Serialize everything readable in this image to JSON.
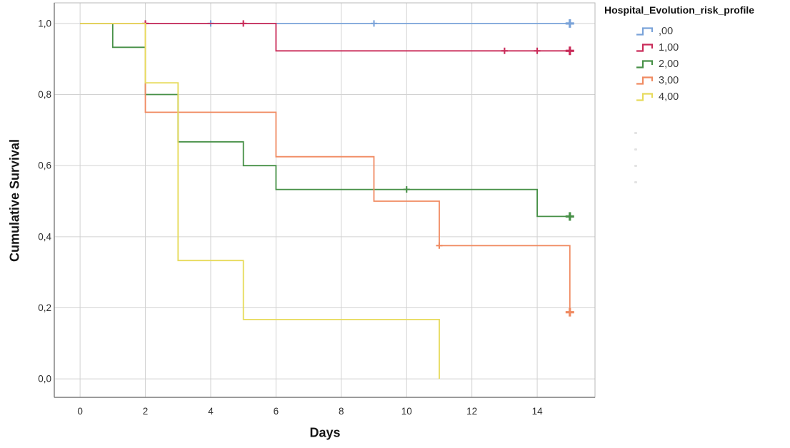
{
  "figure": {
    "background": "#ffffff"
  },
  "axes": {
    "y_title": "Cumulative Survival",
    "x_title": "Days"
  },
  "legend": {
    "title": "Hospital_Evolution_risk_profile",
    "entries": [
      {
        "label": ",00",
        "color": "#7AA3D9"
      },
      {
        "label": "1,00",
        "color": "#C92B59"
      },
      {
        "label": "2,00",
        "color": "#479047"
      },
      {
        "label": "3,00",
        "color": "#F08B62"
      },
      {
        "label": "4,00",
        "color": "#E7DB5C"
      }
    ],
    "ghost_marks": [
      [
        888,
        185
      ],
      [
        888,
        208
      ],
      [
        888,
        231
      ],
      [
        888,
        254
      ]
    ]
  },
  "chart_data": {
    "type": "line",
    "subtype": "kaplan-meier-step-survival",
    "title": "",
    "xlabel": "Days",
    "ylabel": "Cumulative Survival",
    "xlim": [
      -0.79,
      15.77
    ],
    "ylim": [
      -0.052,
      1.058
    ],
    "grid": true,
    "legend_position": "outside-top-right",
    "grid_color": "#d2d2d2",
    "frame_color": "#b8b8b8",
    "axis_color": "#7a7a7a",
    "tick_color": "#2d2d2d",
    "censor_marker": "plus",
    "xticks": [
      {
        "v": 0,
        "label": "0"
      },
      {
        "v": 2,
        "label": "2"
      },
      {
        "v": 4,
        "label": "4"
      },
      {
        "v": 6,
        "label": "6"
      },
      {
        "v": 8,
        "label": "8"
      },
      {
        "v": 10,
        "label": "10"
      },
      {
        "v": 12,
        "label": "12"
      },
      {
        "v": 14,
        "label": "14"
      }
    ],
    "yticks": [
      {
        "v": 0.0,
        "label": "0,0"
      },
      {
        "v": 0.2,
        "label": "0,2"
      },
      {
        "v": 0.4,
        "label": "0,4"
      },
      {
        "v": 0.6,
        "label": "0,6"
      },
      {
        "v": 0.8,
        "label": "0,8"
      },
      {
        "v": 1.0,
        "label": "1,0"
      }
    ],
    "series": [
      {
        "name": ",00",
        "color": "#7AA3D9",
        "points": [
          [
            0,
            1.0
          ],
          [
            15,
            1.0
          ]
        ],
        "censored": [
          [
            4,
            1.0
          ],
          [
            9,
            1.0
          ]
        ],
        "end_censor": [
          15,
          1.0
        ]
      },
      {
        "name": "1,00",
        "color": "#C92B59",
        "points": [
          [
            0,
            1.0
          ],
          [
            6,
            0.923
          ],
          [
            15,
            0.923
          ]
        ],
        "censored": [
          [
            2,
            1.0
          ],
          [
            5,
            1.0
          ],
          [
            13,
            0.923
          ],
          [
            14,
            0.923
          ]
        ],
        "end_censor": [
          15,
          0.923
        ]
      },
      {
        "name": "2,00",
        "color": "#479047",
        "points": [
          [
            0,
            1.0
          ],
          [
            1,
            0.933
          ],
          [
            2,
            0.8
          ],
          [
            3,
            0.667
          ],
          [
            5,
            0.6
          ],
          [
            6,
            0.533
          ],
          [
            14,
            0.457
          ],
          [
            15,
            0.457
          ]
        ],
        "censored": [
          [
            10,
            0.533
          ]
        ],
        "end_censor": [
          15,
          0.457
        ]
      },
      {
        "name": "3,00",
        "color": "#F08B62",
        "points": [
          [
            0,
            1.0
          ],
          [
            2,
            0.75
          ],
          [
            6,
            0.625
          ],
          [
            9,
            0.5
          ],
          [
            11,
            0.375
          ],
          [
            15,
            0.1875
          ]
        ],
        "censored": [
          [
            11,
            0.375
          ]
        ],
        "end_censor": [
          15,
          0.1875
        ]
      },
      {
        "name": "4,00",
        "color": "#E7DB5C",
        "points": [
          [
            0,
            1.0
          ],
          [
            2,
            0.833
          ],
          [
            3,
            0.333
          ],
          [
            5,
            0.167
          ],
          [
            11,
            0.0
          ]
        ],
        "censored": [],
        "end_censor": null
      }
    ]
  }
}
